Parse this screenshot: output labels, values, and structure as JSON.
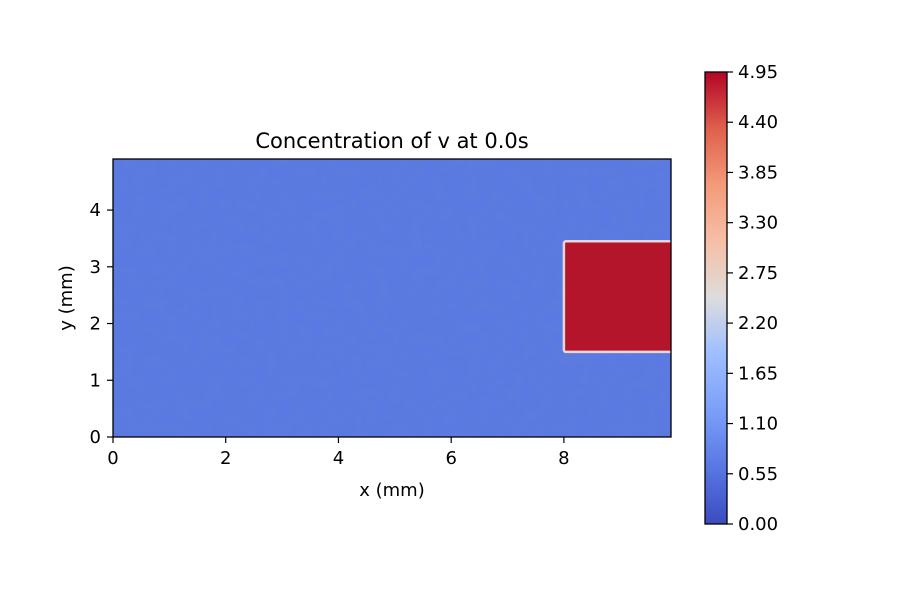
{
  "chart_data": {
    "type": "heatmap",
    "title": "Concentration of v at 0.0s",
    "xlabel": "x (mm)",
    "ylabel": "y (mm)",
    "xlim": [
      0,
      9.9
    ],
    "ylim": [
      0,
      4.9
    ],
    "xticks": [
      0,
      2,
      4,
      6,
      8
    ],
    "xtick_labels": [
      "0",
      "2",
      "4",
      "6",
      "8"
    ],
    "yticks": [
      0,
      1,
      2,
      3,
      4
    ],
    "ytick_labels": [
      "0",
      "1",
      "2",
      "3",
      "4"
    ],
    "colormap": "coolwarm",
    "background_level": 0.5,
    "background_noise": 0.04,
    "regions": [
      {
        "x": [
          8.0,
          9.9
        ],
        "y": [
          1.5,
          3.45
        ],
        "value": 4.95
      }
    ],
    "colorbar": {
      "min": 0.0,
      "max": 4.95,
      "ticks": [
        0.0,
        0.55,
        1.1,
        1.65,
        2.2,
        2.75,
        3.3,
        3.85,
        4.4,
        4.95
      ],
      "tick_labels": [
        "0.00",
        "0.55",
        "1.10",
        "1.65",
        "2.20",
        "2.75",
        "3.30",
        "3.85",
        "4.40",
        "4.95"
      ]
    },
    "grid": false
  }
}
